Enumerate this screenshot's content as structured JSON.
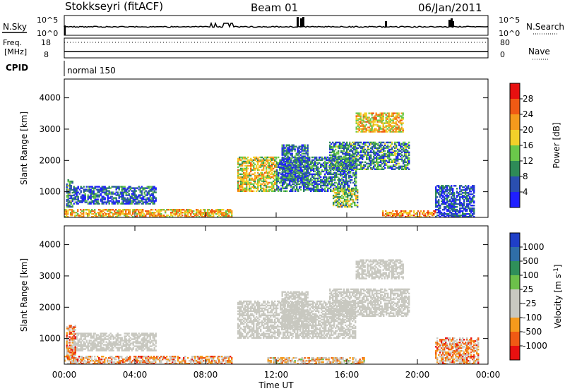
{
  "header": {
    "station": "Stokkseyri (fitACF)",
    "beam": "Beam 01",
    "date": "06/Jan/2011"
  },
  "top_panels": {
    "nsky_label": "N.Sky",
    "nsearch_label": "N.Search",
    "noise_ticks_left": [
      "10^5",
      "10^0"
    ],
    "noise_ticks_right": [
      "10^5",
      "10^0"
    ],
    "freq_label_line1": "Freq.",
    "freq_label_line2": "[MHz]",
    "freq_ticks": [
      "18",
      "8"
    ],
    "nave_label": "Nave",
    "nave_ticks": [
      "80",
      "0"
    ],
    "cpid_label": "CPID",
    "cpid_value": "normal 150"
  },
  "chart_data": [
    {
      "type": "heatmap",
      "panel": "power",
      "ylabel": "Slant Range [km]",
      "yticks": [
        1000,
        2000,
        3000,
        4000
      ],
      "ylim": [
        180,
        4600
      ],
      "xlim": [
        0,
        24
      ],
      "colorbar": {
        "label": "Power [dB]",
        "ticks": [
          "4",
          "8",
          "12",
          "16",
          "20",
          "24",
          "28"
        ],
        "colors": [
          "#1f1fff",
          "#2a4fb0",
          "#2e8b57",
          "#6ac84a",
          "#f2d02a",
          "#f59a1c",
          "#f05a14",
          "#e81010"
        ]
      },
      "regions": [
        {
          "t0": 0.1,
          "t1": 0.5,
          "r0": 500,
          "r1": 1400,
          "v": 0.7
        },
        {
          "t0": 0.5,
          "t1": 5.2,
          "r0": 600,
          "r1": 1150,
          "v": 0.8
        },
        {
          "t0": 0.0,
          "t1": 9.5,
          "r0": 180,
          "r1": 450,
          "v": 0.35
        },
        {
          "t0": 9.8,
          "t1": 12.0,
          "r0": 1000,
          "r1": 2100,
          "v": 0.45
        },
        {
          "t0": 12.0,
          "t1": 16.5,
          "r0": 1000,
          "r1": 2100,
          "v": 0.75
        },
        {
          "t0": 12.3,
          "t1": 13.8,
          "r0": 1300,
          "r1": 2500,
          "v": 0.8
        },
        {
          "t0": 15.0,
          "t1": 19.5,
          "r0": 1700,
          "r1": 2600,
          "v": 0.7
        },
        {
          "t0": 15.2,
          "t1": 16.6,
          "r0": 500,
          "r1": 1100,
          "v": 0.55
        },
        {
          "t0": 16.5,
          "t1": 19.2,
          "r0": 2900,
          "r1": 3500,
          "v": 0.4
        },
        {
          "t0": 21.0,
          "t1": 23.2,
          "r0": 180,
          "r1": 1200,
          "v": 0.85
        },
        {
          "t0": 18.0,
          "t1": 21.0,
          "r0": 180,
          "r1": 400,
          "v": 0.3
        }
      ]
    },
    {
      "type": "heatmap",
      "panel": "velocity",
      "xlabel": "Time UT",
      "ylabel": "Slant Range [km]",
      "xticks": [
        "00:00",
        "04:00",
        "08:00",
        "12:00",
        "16:00",
        "20:00",
        "00:00"
      ],
      "yticks": [
        1000,
        2000,
        3000,
        4000
      ],
      "ylim": [
        180,
        4600
      ],
      "xlim": [
        0,
        24
      ],
      "colorbar": {
        "label": "Velocity [m s^-1]",
        "ticks": [
          "1000",
          "500",
          "100",
          "25",
          "-25",
          "-100",
          "-500",
          "-1000"
        ],
        "colors": [
          "#1f3fc8",
          "#2f6ea8",
          "#2f8f5a",
          "#6cc04a",
          "#c8c8c0",
          "#c8c8c0",
          "#f59a1c",
          "#f05a14",
          "#e81010"
        ]
      },
      "regions": [
        {
          "t0": 0.5,
          "t1": 5.2,
          "r0": 600,
          "r1": 1150,
          "v": 0.5
        },
        {
          "t0": 0.1,
          "t1": 0.6,
          "r0": 400,
          "r1": 1400,
          "v": 0.75
        },
        {
          "t0": 0.0,
          "t1": 9.5,
          "r0": 180,
          "r1": 450,
          "v": 0.7
        },
        {
          "t0": 9.8,
          "t1": 16.5,
          "r0": 1000,
          "r1": 2200,
          "v": 0.5
        },
        {
          "t0": 12.3,
          "t1": 13.8,
          "r0": 1300,
          "r1": 2500,
          "v": 0.5
        },
        {
          "t0": 15.0,
          "t1": 19.5,
          "r0": 1700,
          "r1": 2600,
          "v": 0.5
        },
        {
          "t0": 16.5,
          "t1": 19.2,
          "r0": 2900,
          "r1": 3500,
          "v": 0.5
        },
        {
          "t0": 21.0,
          "t1": 23.4,
          "r0": 180,
          "r1": 1000,
          "v": 0.72
        },
        {
          "t0": 11.5,
          "t1": 17.0,
          "r0": 180,
          "r1": 400,
          "v": 0.62
        }
      ]
    }
  ]
}
